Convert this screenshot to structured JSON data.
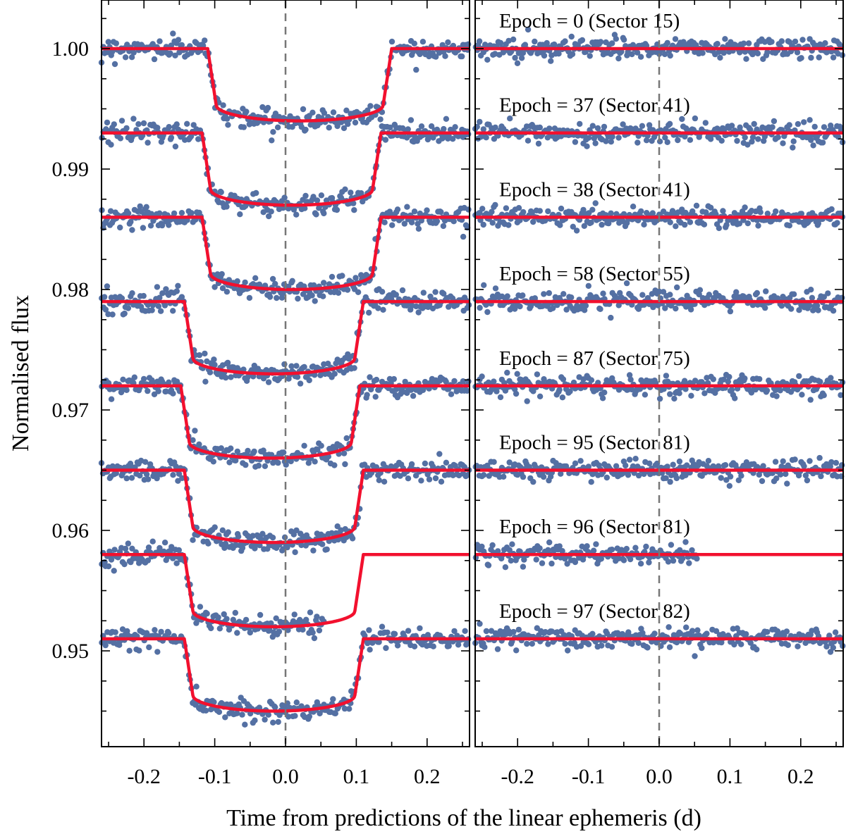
{
  "chart_data": {
    "type": "scatter",
    "title": "",
    "xlabel": "Time from predictions of the linear ephemeris (d)",
    "ylabel": "Normalised flux",
    "ylim": [
      0.944,
      1.004
    ],
    "yticks": [
      0.95,
      0.96,
      0.97,
      0.98,
      0.99,
      1.0
    ],
    "ytick_labels": [
      "0.95",
      "0.96",
      "0.97",
      "0.98",
      "0.99",
      "1.00"
    ],
    "reference_line_x": 0.0,
    "panels": [
      {
        "name": "left",
        "description": "transits at observed times",
        "xlim": [
          -0.26,
          0.26
        ],
        "xticks": [
          -0.2,
          -0.1,
          0.0,
          0.1,
          0.2
        ],
        "xtick_labels": [
          "-0.2",
          "-0.1",
          "0.0",
          "0.1",
          "0.2"
        ]
      },
      {
        "name": "right",
        "description": "residuals",
        "xlim": [
          -0.26,
          0.26
        ],
        "xticks": [
          -0.2,
          -0.1,
          0.0,
          0.1,
          0.2
        ],
        "xtick_labels": [
          "-0.2",
          "-0.1",
          "0.0",
          "0.1",
          "0.2"
        ]
      }
    ],
    "series": [
      {
        "name": "Epoch = 0 (Sector 15)",
        "epoch": 0,
        "sector": 15,
        "baseline": 1.0,
        "depth": 0.006,
        "ingress": -0.11,
        "egress": 0.15,
        "duration_in": 0.012,
        "data_range": [
          -0.26,
          0.26
        ]
      },
      {
        "name": "Epoch = 37 (Sector 41)",
        "epoch": 37,
        "sector": 41,
        "baseline": 0.993,
        "depth": 0.006,
        "ingress": -0.118,
        "egress": 0.135,
        "duration_in": 0.012,
        "data_range": [
          -0.26,
          0.26
        ]
      },
      {
        "name": "Epoch = 38 (Sector 41)",
        "epoch": 38,
        "sector": 41,
        "baseline": 0.986,
        "depth": 0.006,
        "ingress": -0.118,
        "egress": 0.135,
        "duration_in": 0.012,
        "data_range": [
          -0.26,
          0.26
        ]
      },
      {
        "name": "Epoch = 58 (Sector 55)",
        "epoch": 58,
        "sector": 55,
        "baseline": 0.979,
        "depth": 0.006,
        "ingress": -0.143,
        "egress": 0.11,
        "duration_in": 0.012,
        "data_range": [
          -0.26,
          0.26
        ]
      },
      {
        "name": "Epoch = 87 (Sector 75)",
        "epoch": 87,
        "sector": 75,
        "baseline": 0.972,
        "depth": 0.006,
        "ingress": -0.148,
        "egress": 0.105,
        "duration_in": 0.012,
        "data_range": [
          -0.26,
          0.26
        ]
      },
      {
        "name": "Epoch = 95 (Sector 81)",
        "epoch": 95,
        "sector": 81,
        "baseline": 0.965,
        "depth": 0.006,
        "ingress": -0.143,
        "egress": 0.11,
        "duration_in": 0.012,
        "data_range": [
          -0.26,
          0.26
        ]
      },
      {
        "name": "Epoch = 96 (Sector 81)",
        "epoch": 96,
        "sector": 81,
        "baseline": 0.958,
        "depth": 0.006,
        "ingress": -0.143,
        "egress": 0.11,
        "duration_in": 0.012,
        "data_range": [
          -0.26,
          0.055
        ]
      },
      {
        "name": "Epoch = 97 (Sector 82)",
        "epoch": 97,
        "sector": 82,
        "baseline": 0.951,
        "depth": 0.006,
        "ingress": -0.143,
        "egress": 0.11,
        "duration_in": 0.012,
        "data_range": [
          -0.26,
          0.26
        ]
      }
    ]
  },
  "colors": {
    "data_points": "#5470a3",
    "model": "#f2102e",
    "reference_line": "#777777"
  }
}
